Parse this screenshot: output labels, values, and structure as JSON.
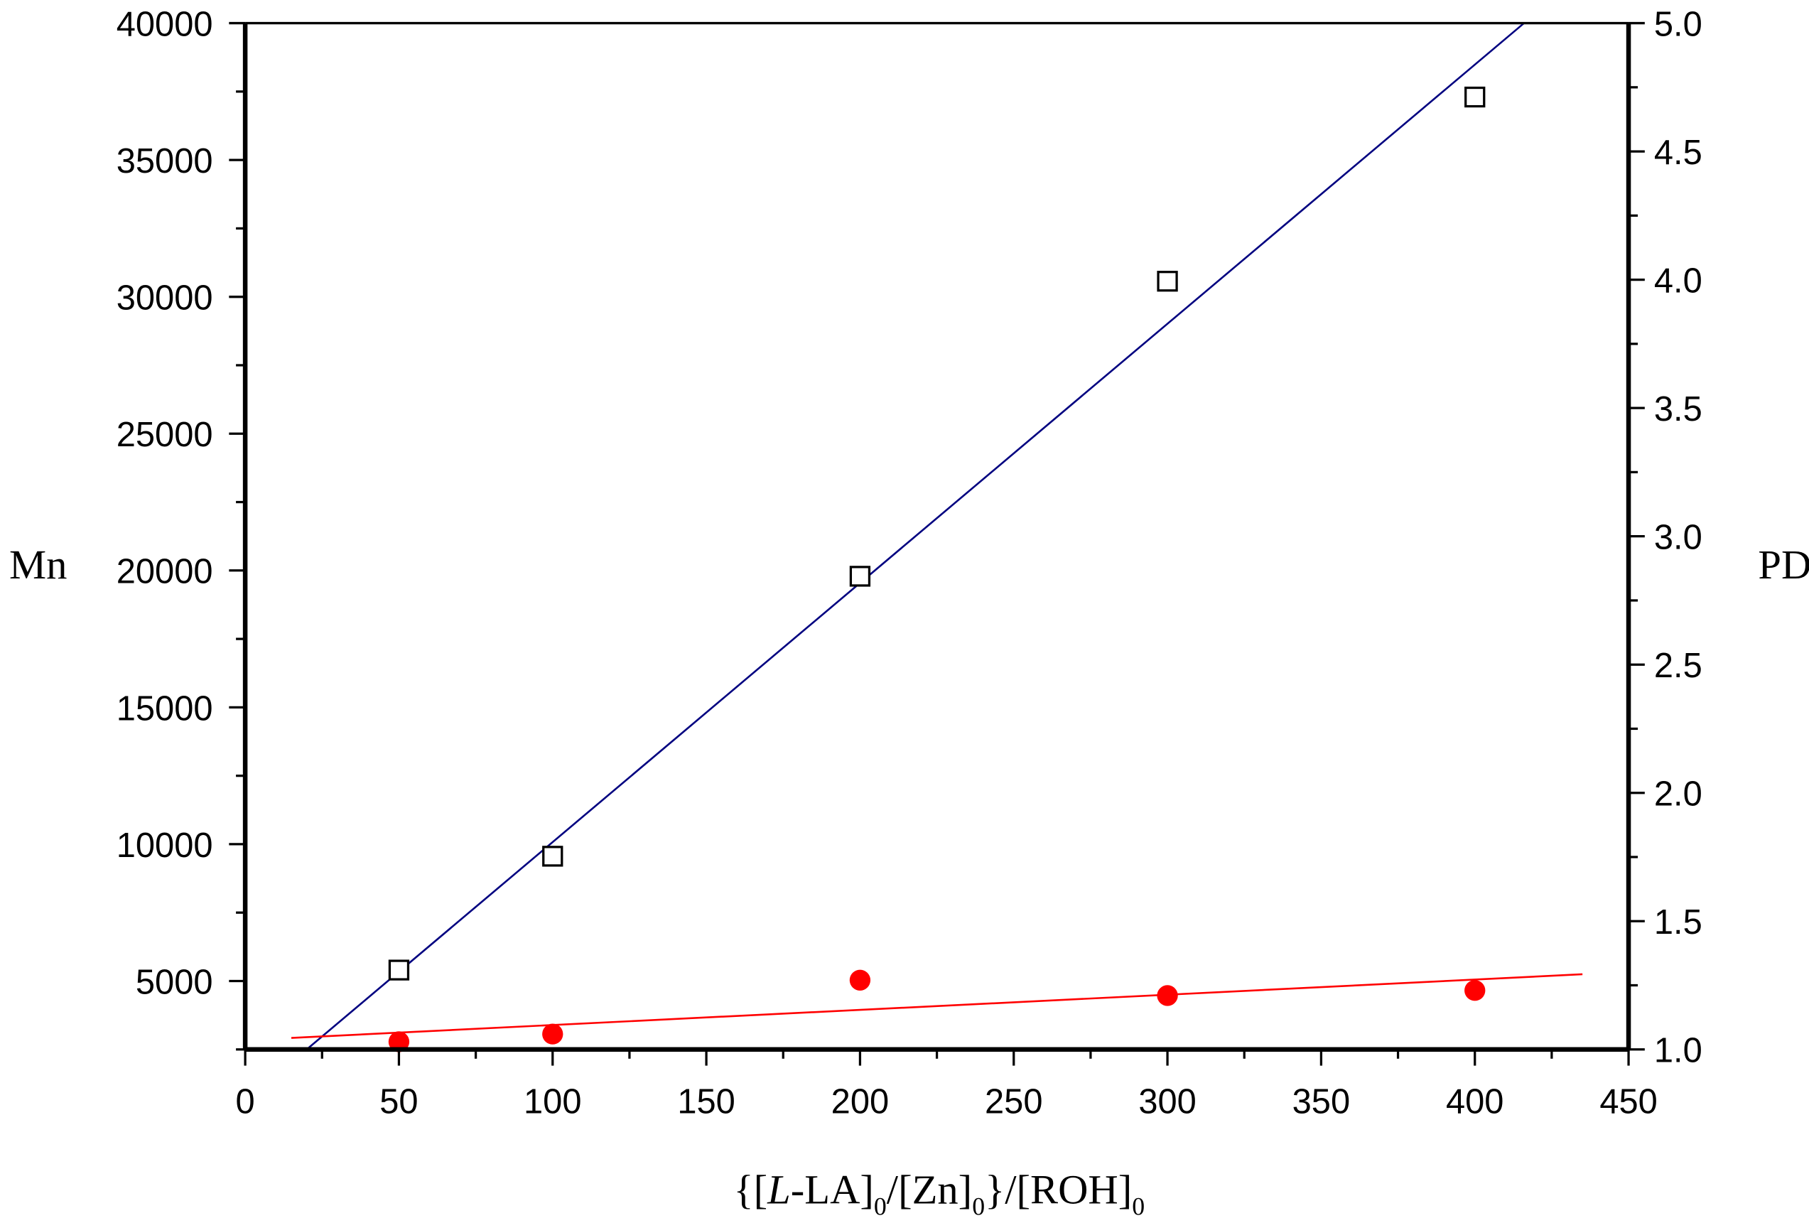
{
  "chart_data": {
    "type": "scatter",
    "title": "",
    "x_axis": {
      "label_parts": [
        {
          "text": "{[",
          "style": "normal"
        },
        {
          "text": "L",
          "style": "italic"
        },
        {
          "text": "-LA]",
          "style": "normal"
        },
        {
          "text": "0",
          "style": "sub"
        },
        {
          "text": "/[Zn]",
          "style": "normal"
        },
        {
          "text": "0",
          "style": "sub"
        },
        {
          "text": "}/[ROH]",
          "style": "normal"
        },
        {
          "text": "0",
          "style": "sub"
        }
      ],
      "range": [
        0,
        450
      ],
      "ticks": [
        0,
        50,
        100,
        150,
        200,
        250,
        300,
        350,
        400,
        450
      ],
      "minor_step": 25
    },
    "y_left": {
      "label": "Mn",
      "range": [
        2500,
        40000
      ],
      "ticks": [
        5000,
        10000,
        15000,
        20000,
        25000,
        30000,
        35000,
        40000
      ],
      "minor_step": 2500
    },
    "y_right": {
      "label": "PDI",
      "range": [
        1.0,
        5.0
      ],
      "ticks": [
        "1.0",
        "1.5",
        "2.0",
        "2.5",
        "3.0",
        "3.5",
        "4.0",
        "4.5",
        "5.0"
      ],
      "minor_step": 0.25
    },
    "grid": false,
    "legend": "none",
    "series": [
      {
        "axis": "left",
        "marker": "open-square",
        "color": "#000000",
        "x": [
          50,
          100,
          200,
          300,
          400
        ],
        "y": [
          5400,
          9560,
          19790,
          30570,
          37300
        ]
      },
      {
        "axis": "right",
        "marker": "filled-circle",
        "color": "#ff0000",
        "x": [
          50,
          100,
          200,
          300,
          400
        ],
        "y": [
          1.03,
          1.06,
          1.27,
          1.21,
          1.23
        ]
      }
    ],
    "fits": [
      {
        "axis": "left",
        "color": "#000080",
        "x": [
          20,
          416
        ],
        "y": [
          2500,
          40000
        ]
      },
      {
        "axis": "right",
        "color": "#ff0000",
        "x": [
          15,
          435
        ],
        "y": [
          1.045,
          1.293
        ]
      }
    ]
  }
}
